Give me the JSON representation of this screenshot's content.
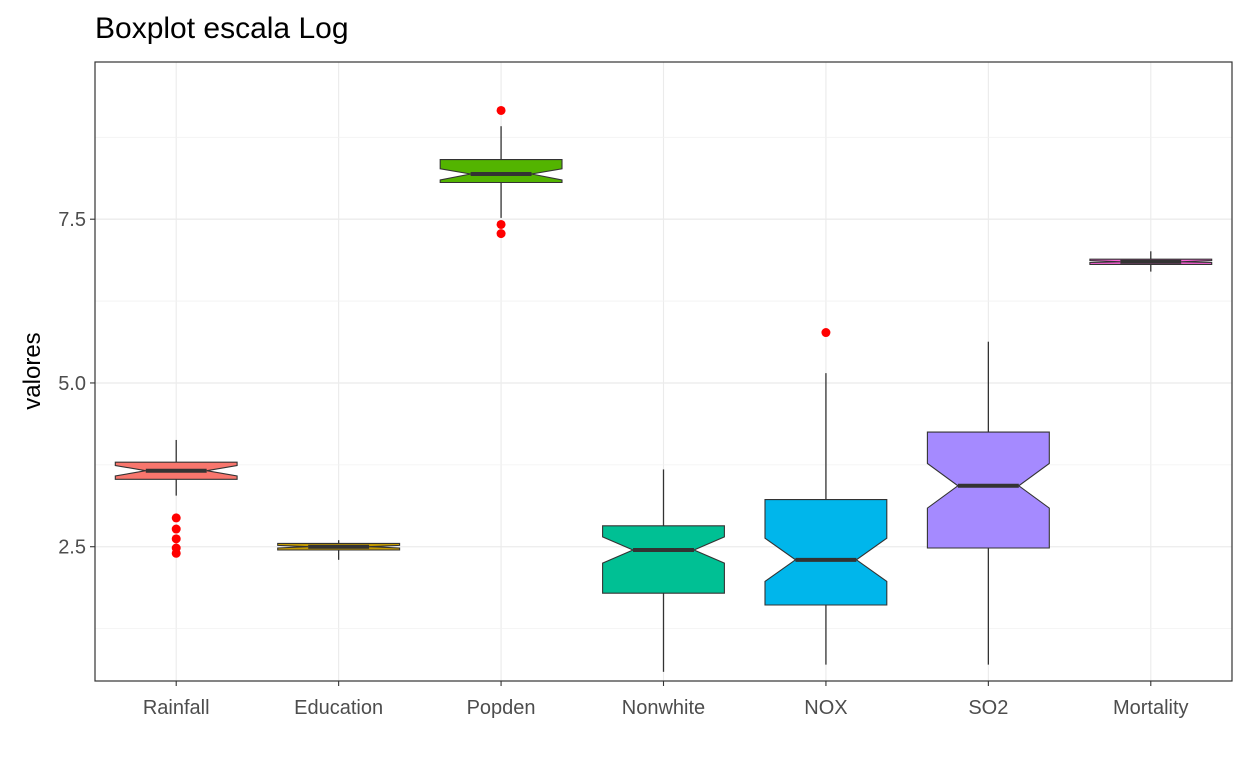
{
  "chart_data": {
    "type": "boxplot",
    "notched": true,
    "title": "Boxplot escala Log",
    "xlabel": "",
    "ylabel": "valores",
    "ylim": [
      0.45,
      9.9
    ],
    "yticks": [
      2.5,
      5.0,
      7.5
    ],
    "ytick_labels": [
      "2.5",
      "5.0",
      "7.5"
    ],
    "grid": true,
    "legend": "none",
    "theme": "bw",
    "outlier_color": "#ff0000",
    "categories": [
      "Rainfall",
      "Education",
      "Popden",
      "Nonwhite",
      "NOX",
      "SO2",
      "Mortality"
    ],
    "boxes": [
      {
        "name": "Rainfall",
        "color": "#f8766d",
        "whisker_low": 3.28,
        "q1": 3.53,
        "median": 3.66,
        "q3": 3.79,
        "whisker_high": 4.13,
        "notch_low": 3.58,
        "notch_high": 3.74,
        "outliers": [
          2.94,
          2.77,
          2.62,
          2.48,
          2.4
        ]
      },
      {
        "name": "Education",
        "color": "#c49a00",
        "whisker_low": 2.3,
        "q1": 2.45,
        "median": 2.5,
        "q3": 2.55,
        "whisker_high": 2.6,
        "notch_low": 2.48,
        "notch_high": 2.52,
        "outliers": []
      },
      {
        "name": "Popden",
        "color": "#53b400",
        "whisker_low": 7.52,
        "q1": 8.06,
        "median": 8.19,
        "q3": 8.41,
        "whisker_high": 8.92,
        "notch_low": 8.1,
        "notch_high": 8.27,
        "outliers": [
          9.16,
          7.42,
          7.28
        ]
      },
      {
        "name": "Nonwhite",
        "color": "#00c094",
        "whisker_low": 0.59,
        "q1": 1.79,
        "median": 2.45,
        "q3": 2.82,
        "whisker_high": 3.68,
        "notch_low": 2.25,
        "notch_high": 2.65,
        "outliers": []
      },
      {
        "name": "NOX",
        "color": "#00b6eb",
        "whisker_low": 0.7,
        "q1": 1.61,
        "median": 2.3,
        "q3": 3.22,
        "whisker_high": 5.15,
        "notch_low": 1.97,
        "notch_high": 2.63,
        "outliers": [
          5.77
        ]
      },
      {
        "name": "SO2",
        "color": "#a58aff",
        "whisker_low": 0.7,
        "q1": 2.48,
        "median": 3.43,
        "q3": 4.25,
        "whisker_high": 5.63,
        "notch_low": 3.09,
        "notch_high": 3.77,
        "outliers": []
      },
      {
        "name": "Mortality",
        "color": "#fb61d7",
        "whisker_low": 6.7,
        "q1": 6.81,
        "median": 6.85,
        "q3": 6.89,
        "whisker_high": 7.01,
        "notch_low": 6.84,
        "notch_high": 6.87,
        "outliers": []
      }
    ]
  }
}
